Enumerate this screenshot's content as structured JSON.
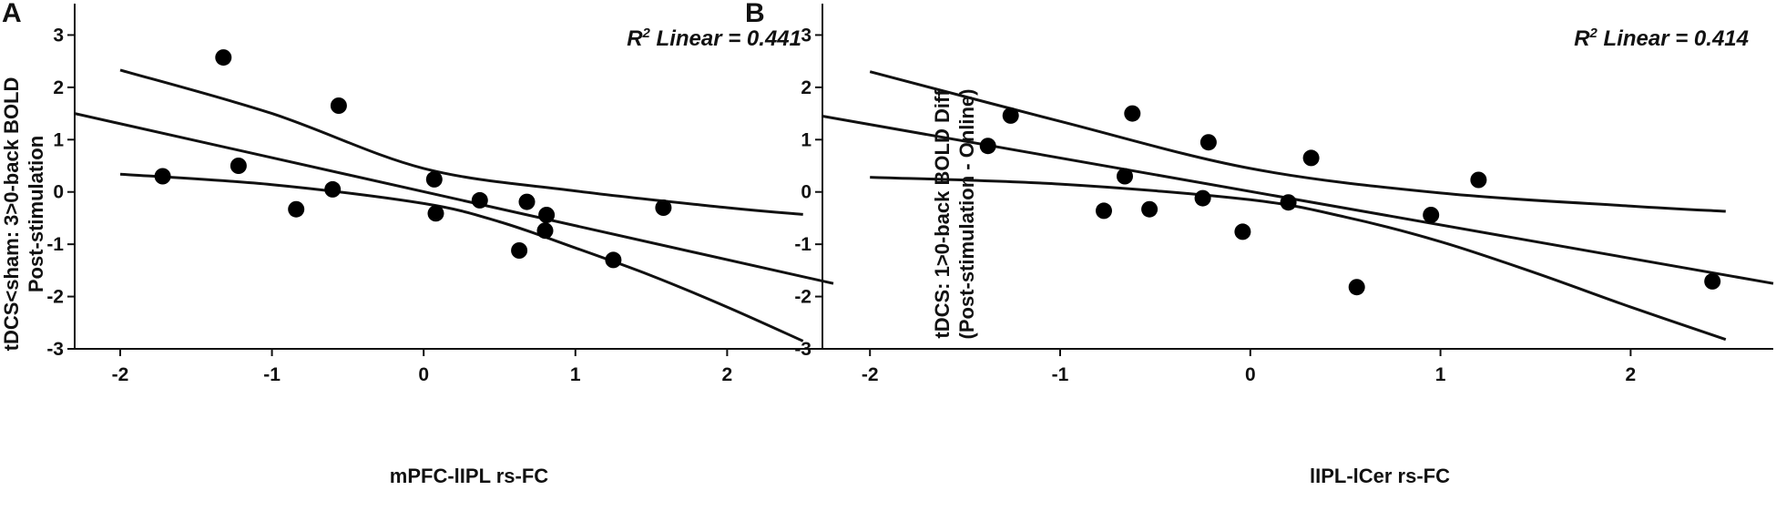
{
  "chart_data": [
    {
      "type": "scatter",
      "panel_label": "A",
      "annotation": {
        "r2_prefix": "R",
        "r2_sup": "2",
        "r2_suffix": " Linear = 0.441"
      },
      "xlabel": "mPFC-lIPL rs-FC",
      "ylabel_lines": [
        "tDCS<sham: 3>0-back BOLD",
        "Post-stimulation"
      ],
      "xlim": [
        -2.3,
        2.7
      ],
      "ylim": [
        -3,
        3.6
      ],
      "xticks": [
        -2,
        -1,
        0,
        1,
        2
      ],
      "yticks": [
        -3,
        -2,
        -1,
        0,
        1,
        2,
        3
      ],
      "grid": false,
      "points": [
        {
          "x": -1.72,
          "y": 0.3
        },
        {
          "x": -1.32,
          "y": 2.57
        },
        {
          "x": -1.22,
          "y": 0.5
        },
        {
          "x": -0.84,
          "y": -0.33
        },
        {
          "x": -0.6,
          "y": 0.05
        },
        {
          "x": -0.56,
          "y": 1.65
        },
        {
          "x": 0.07,
          "y": 0.24
        },
        {
          "x": 0.08,
          "y": -0.41
        },
        {
          "x": 0.37,
          "y": -0.16
        },
        {
          "x": 0.63,
          "y": -1.12
        },
        {
          "x": 0.68,
          "y": -0.19
        },
        {
          "x": 0.8,
          "y": -0.74
        },
        {
          "x": 0.81,
          "y": -0.44
        },
        {
          "x": 1.25,
          "y": -1.3
        },
        {
          "x": 1.58,
          "y": -0.3
        }
      ],
      "fit_line": {
        "x": [
          -2.3,
          2.7
        ],
        "y": [
          1.5,
          -1.75
        ]
      },
      "ci_upper": {
        "x": [
          -2,
          -1,
          0,
          1,
          2,
          2.5
        ],
        "y": [
          2.33,
          1.5,
          0.45,
          0.02,
          -0.3,
          -0.43
        ]
      },
      "ci_lower": {
        "x": [
          -2,
          -1,
          0,
          0.5,
          1,
          1.5,
          2,
          2.5
        ],
        "y": [
          0.34,
          0.14,
          -0.22,
          -0.57,
          -1.07,
          -1.6,
          -2.2,
          -2.85
        ]
      }
    },
    {
      "type": "scatter",
      "panel_label": "B",
      "annotation": {
        "r2_prefix": "R",
        "r2_sup": "2",
        "r2_suffix": " Linear = 0.414"
      },
      "xlabel": "lIPL-lCer rs-FC",
      "ylabel_lines": [
        "tDCS: 1>0-back BOLD Diff",
        "(Post-stimulation - Online)"
      ],
      "xlim": [
        -2.25,
        2.75
      ],
      "ylim": [
        -3,
        3.6
      ],
      "xticks": [
        -2,
        -1,
        0,
        1,
        2
      ],
      "yticks": [
        -3,
        -2,
        -1,
        0,
        1,
        2,
        3
      ],
      "grid": false,
      "points": [
        {
          "x": -1.38,
          "y": 0.88
        },
        {
          "x": -1.26,
          "y": 1.46
        },
        {
          "x": -0.77,
          "y": -0.36
        },
        {
          "x": -0.66,
          "y": 0.3
        },
        {
          "x": -0.62,
          "y": 1.5
        },
        {
          "x": -0.53,
          "y": -0.33
        },
        {
          "x": -0.25,
          "y": -0.12
        },
        {
          "x": -0.22,
          "y": 0.95
        },
        {
          "x": -0.04,
          "y": -0.76
        },
        {
          "x": 0.2,
          "y": -0.2
        },
        {
          "x": 0.32,
          "y": 0.65
        },
        {
          "x": 0.56,
          "y": -1.82
        },
        {
          "x": 0.95,
          "y": -0.44
        },
        {
          "x": 1.2,
          "y": 0.23
        },
        {
          "x": 2.43,
          "y": -1.71
        }
      ],
      "fit_line": {
        "x": [
          -2.25,
          2.75
        ],
        "y": [
          1.45,
          -1.75
        ]
      },
      "ci_upper": {
        "x": [
          -2,
          -1,
          0,
          1,
          2,
          2.5
        ],
        "y": [
          2.3,
          1.35,
          0.45,
          -0.02,
          -0.27,
          -0.37
        ]
      },
      "ci_lower": {
        "x": [
          -2,
          -1,
          0,
          0.5,
          1,
          1.5,
          2,
          2.5
        ],
        "y": [
          0.28,
          0.15,
          -0.15,
          -0.48,
          -0.95,
          -1.55,
          -2.2,
          -2.82
        ]
      }
    }
  ]
}
